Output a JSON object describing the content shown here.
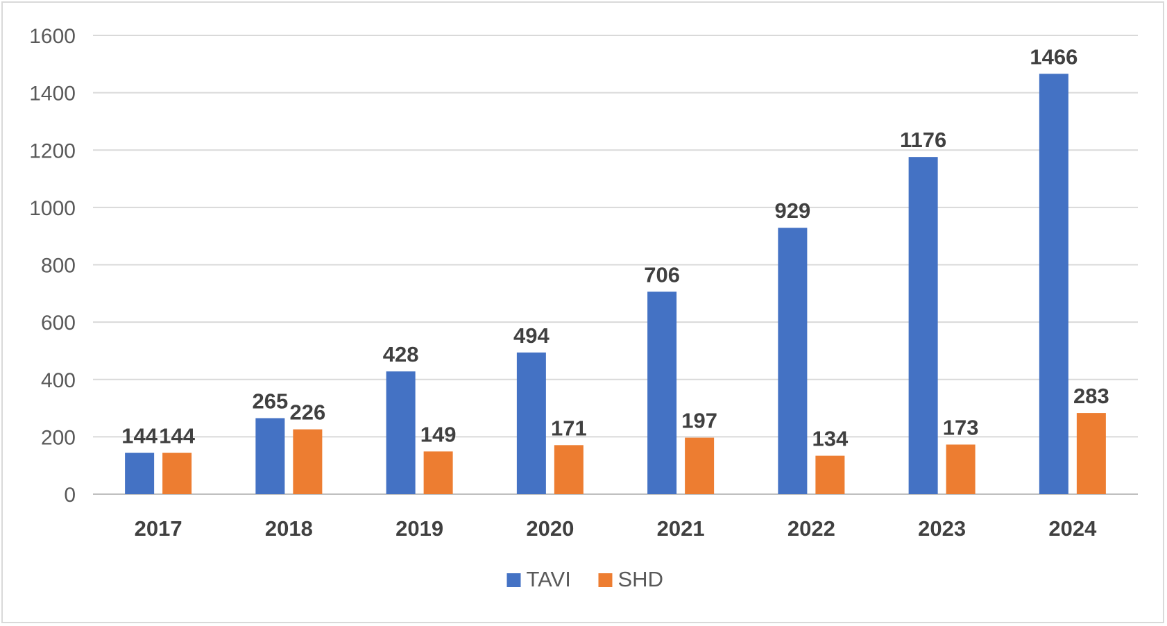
{
  "chart_data": {
    "type": "bar",
    "title": "",
    "xlabel": "",
    "ylabel": "",
    "categories": [
      "2017",
      "2018",
      "2019",
      "2020",
      "2021",
      "2022",
      "2023",
      "2024"
    ],
    "series": [
      {
        "name": "TAVI",
        "color": "#4472c4",
        "values": [
          144,
          265,
          428,
          494,
          706,
          929,
          1176,
          1466
        ]
      },
      {
        "name": "SHD",
        "color": "#ed7d31",
        "values": [
          144,
          226,
          149,
          171,
          197,
          134,
          173,
          283
        ]
      }
    ],
    "ylim": [
      0,
      1600
    ],
    "yticks": [
      0,
      200,
      400,
      600,
      800,
      1000,
      1200,
      1400,
      1600
    ],
    "grid": true,
    "legend_position": "bottom-center"
  }
}
